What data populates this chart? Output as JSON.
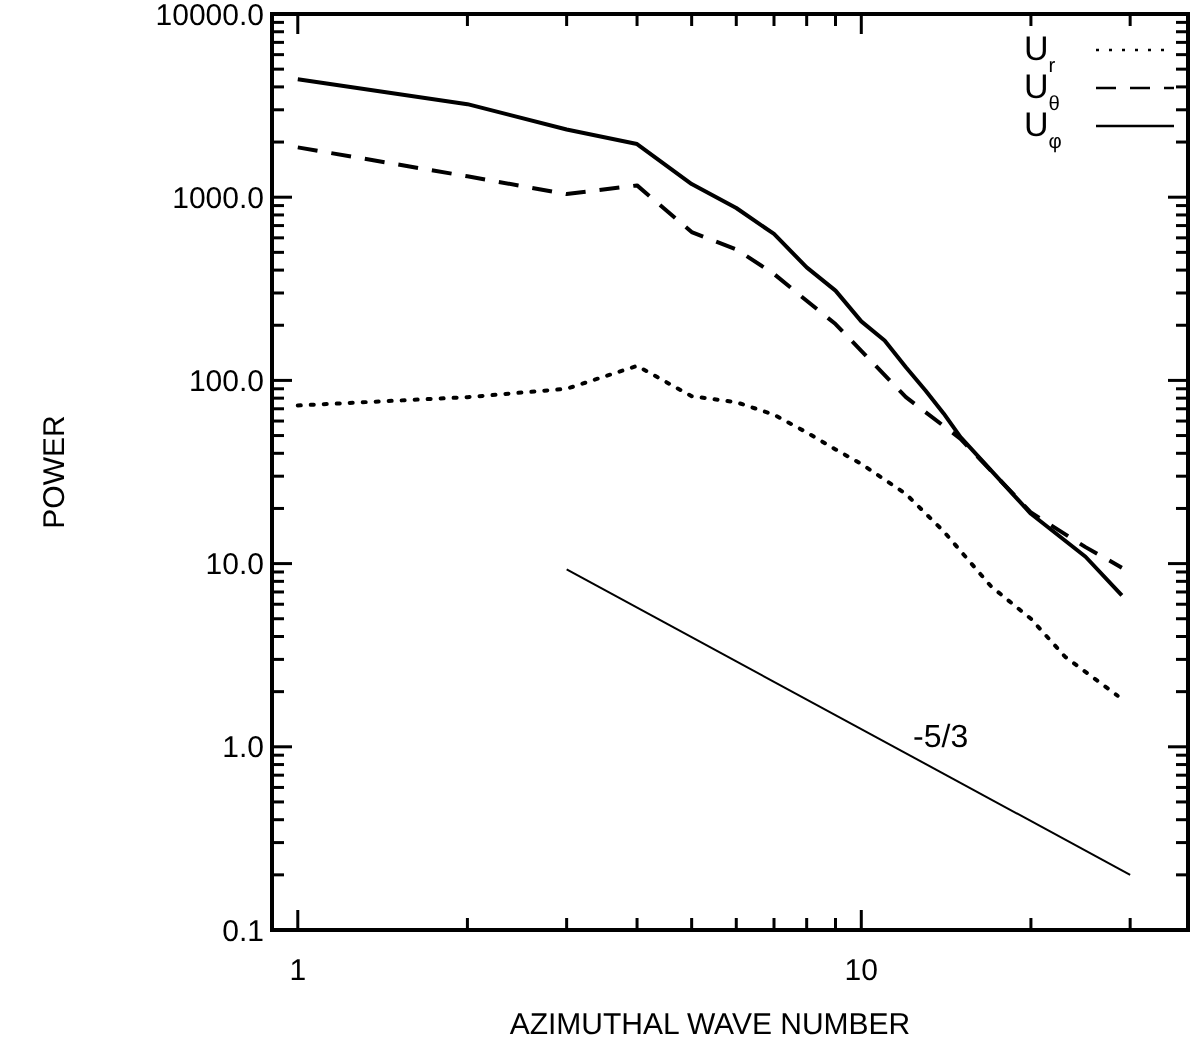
{
  "chart_data": {
    "type": "line",
    "xlabel": "AZIMUTHAL WAVE NUMBER",
    "ylabel": "POWER",
    "log": "xy",
    "xlim": [
      0.9,
      38
    ],
    "ylim": [
      0.1,
      10000
    ],
    "xticks": [
      1,
      {
        "value": 2,
        "label": null
      },
      {
        "value": 3,
        "label": null
      },
      {
        "value": 4,
        "label": null
      },
      {
        "value": 5,
        "label": null
      },
      {
        "value": 6,
        "label": null
      },
      {
        "value": 7,
        "label": null
      },
      {
        "value": 8,
        "label": null
      },
      {
        "value": 9,
        "label": null
      },
      10,
      {
        "value": 20,
        "label": null
      },
      {
        "value": 30,
        "label": null
      }
    ],
    "yticks": [
      {
        "value": 0.1,
        "label": "0.1"
      },
      {
        "value": 0.2,
        "label": null
      },
      {
        "value": 0.3,
        "label": null
      },
      {
        "value": 0.4,
        "label": null
      },
      {
        "value": 0.5,
        "label": null
      },
      {
        "value": 0.6,
        "label": null
      },
      {
        "value": 0.7,
        "label": null
      },
      {
        "value": 0.8,
        "label": null
      },
      {
        "value": 0.9,
        "label": null
      },
      {
        "value": 1,
        "label": "1.0"
      },
      {
        "value": 2,
        "label": null
      },
      {
        "value": 3,
        "label": null
      },
      {
        "value": 4,
        "label": null
      },
      {
        "value": 5,
        "label": null
      },
      {
        "value": 6,
        "label": null
      },
      {
        "value": 7,
        "label": null
      },
      {
        "value": 8,
        "label": null
      },
      {
        "value": 9,
        "label": null
      },
      {
        "value": 10,
        "label": "10.0"
      },
      {
        "value": 20,
        "label": null
      },
      {
        "value": 30,
        "label": null
      },
      {
        "value": 40,
        "label": null
      },
      {
        "value": 50,
        "label": null
      },
      {
        "value": 60,
        "label": null
      },
      {
        "value": 70,
        "label": null
      },
      {
        "value": 80,
        "label": null
      },
      {
        "value": 90,
        "label": null
      },
      {
        "value": 100,
        "label": "100.0"
      },
      {
        "value": 200,
        "label": null
      },
      {
        "value": 300,
        "label": null
      },
      {
        "value": 400,
        "label": null
      },
      {
        "value": 500,
        "label": null
      },
      {
        "value": 600,
        "label": null
      },
      {
        "value": 700,
        "label": null
      },
      {
        "value": 800,
        "label": null
      },
      {
        "value": 900,
        "label": null
      },
      {
        "value": 1000,
        "label": "1000.0"
      },
      {
        "value": 2000,
        "label": null
      },
      {
        "value": 3000,
        "label": null
      },
      {
        "value": 4000,
        "label": null
      },
      {
        "value": 5000,
        "label": null
      },
      {
        "value": 6000,
        "label": null
      },
      {
        "value": 7000,
        "label": null
      },
      {
        "value": 8000,
        "label": null
      },
      {
        "value": 9000,
        "label": null
      },
      {
        "value": 10000,
        "label": "10000.0"
      }
    ],
    "grid": false,
    "legend": "top right",
    "annotations": [
      "-5/3"
    ],
    "series": [
      {
        "name": "U$_{r}$",
        "color": "#000000",
        "line_style": "dotted",
        "x": [
          1,
          2,
          3,
          4,
          5,
          6,
          7,
          8,
          9,
          10,
          12,
          14,
          17,
          20,
          23,
          28.5
        ],
        "values": [
          73,
          81,
          90,
          120,
          82,
          76,
          65,
          52,
          42,
          35,
          24,
          15,
          7.5,
          5,
          3.1,
          1.9
        ]
      },
      {
        "name": "U$_{θ}$",
        "color": "#000000",
        "line_style": "dashed",
        "x": [
          1,
          2,
          3,
          4,
          5,
          6,
          7,
          8,
          9,
          10,
          12,
          15,
          20,
          25,
          29
        ],
        "values": [
          1870,
          1300,
          1040,
          1160,
          645,
          519,
          381,
          272,
          203,
          145,
          81,
          48,
          19,
          12.3,
          9.5
        ]
      },
      {
        "name": "U$_{φ}$",
        "color": "#000000",
        "line_style": "solid",
        "x": [
          1,
          2,
          3,
          4,
          5,
          6,
          7,
          8,
          9,
          10,
          11,
          12,
          13,
          14,
          15,
          20,
          25,
          29
        ],
        "values": [
          4400,
          3220,
          2340,
          1950,
          1180,
          873,
          630,
          414,
          309,
          210,
          165,
          118,
          88,
          66,
          49,
          18.7,
          10.9,
          6.7
        ]
      },
      {
        "color": "#000000",
        "line_style": "solid",
        "x": [
          3,
          30
        ],
        "values": [
          9.3,
          0.2
        ]
      }
    ]
  }
}
